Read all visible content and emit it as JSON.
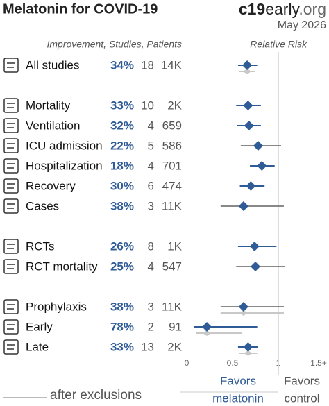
{
  "chart_data": {
    "type": "forest",
    "title": "Melatonin for COVID-19",
    "brand": [
      "c19",
      "early",
      ".org"
    ],
    "date": "May 2026",
    "columns_header": "Improvement, Studies, Patients",
    "axis_header": "Relative Risk",
    "xlim": [
      0,
      1.5
    ],
    "xticks": [
      0,
      0.5,
      1,
      {
        "value": 1.5,
        "label": "1.5+"
      }
    ],
    "favors_left": [
      "Favors",
      "melatonin"
    ],
    "favors_right": [
      "Favors",
      "control"
    ],
    "exclusions_label": "after exclusions",
    "color": "#2f5b96",
    "exclusions_color": "#c8c8c8",
    "groups": [
      {
        "rows": [
          {
            "label": "All studies",
            "improvement": 34,
            "improvement_label": "34%",
            "studies": 18,
            "patients": 14000,
            "patients_label": "14K",
            "rr": 0.66,
            "ci": [
              0.56,
              0.77
            ],
            "excluded": {
              "rr": 0.66,
              "ci": [
                0.57,
                0.75
              ]
            }
          }
        ]
      },
      {
        "rows": [
          {
            "label": "Mortality",
            "improvement": 33,
            "improvement_label": "33%",
            "studies": 10,
            "patients": 2000,
            "patients_label": "2K",
            "rr": 0.67,
            "ci": [
              0.54,
              0.81
            ]
          },
          {
            "label": "Ventilation",
            "improvement": 32,
            "improvement_label": "32%",
            "studies": 4,
            "patients": 659,
            "rr": 0.68,
            "ci": [
              0.55,
              0.81
            ]
          },
          {
            "label": "ICU admission",
            "improvement": 22,
            "improvement_label": "22%",
            "studies": 5,
            "patients": 586,
            "rr": 0.78,
            "ci": [
              0.59,
              1.03
            ]
          },
          {
            "label": "Hospitalization",
            "improvement": 18,
            "improvement_label": "18%",
            "studies": 4,
            "patients": 701,
            "rr": 0.82,
            "ci": [
              0.69,
              0.96
            ]
          },
          {
            "label": "Recovery",
            "improvement": 30,
            "improvement_label": "30%",
            "studies": 6,
            "patients": 474,
            "rr": 0.7,
            "ci": [
              0.58,
              0.85
            ]
          },
          {
            "label": "Cases",
            "improvement": 38,
            "improvement_label": "38%",
            "studies": 3,
            "patients": 11000,
            "patients_label": "11K",
            "rr": 0.62,
            "ci": [
              0.37,
              1.06
            ]
          }
        ]
      },
      {
        "rows": [
          {
            "label": "RCTs",
            "improvement": 26,
            "improvement_label": "26%",
            "studies": 8,
            "patients": 1000,
            "patients_label": "1K",
            "rr": 0.74,
            "ci": [
              0.56,
              0.98
            ]
          },
          {
            "label": "RCT mortality",
            "improvement": 25,
            "improvement_label": "25%",
            "studies": 4,
            "patients": 547,
            "rr": 0.75,
            "ci": [
              0.54,
              1.07
            ]
          }
        ]
      },
      {
        "rows": [
          {
            "label": "Prophylaxis",
            "improvement": 38,
            "improvement_label": "38%",
            "studies": 3,
            "patients": 11000,
            "patients_label": "11K",
            "rr": 0.62,
            "ci": [
              0.37,
              1.06
            ],
            "excluded": {
              "rr": 0.62,
              "ci": [
                0.37,
                1.06
              ]
            }
          },
          {
            "label": "Early",
            "improvement": 78,
            "improvement_label": "78%",
            "studies": 2,
            "patients": 91,
            "rr": 0.22,
            "ci": [
              0.08,
              0.77
            ],
            "excluded": {
              "rr": 0.22,
              "ci": [
                0.1,
                0.6
              ]
            }
          },
          {
            "label": "Late",
            "improvement": 33,
            "improvement_label": "33%",
            "studies": 13,
            "patients": 2000,
            "patients_label": "2K",
            "rr": 0.67,
            "ci": [
              0.56,
              0.78
            ],
            "excluded": {
              "rr": 0.67,
              "ci": [
                0.57,
                0.77
              ]
            }
          }
        ]
      }
    ]
  }
}
